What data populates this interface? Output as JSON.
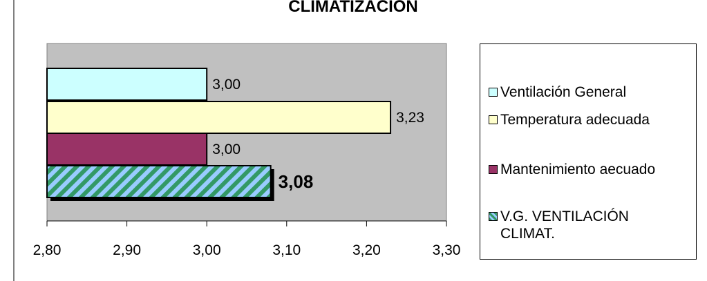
{
  "chart_data": {
    "type": "bar",
    "orientation": "horizontal",
    "title": "CLIMATIZACIÓN",
    "categories": [
      "Ventilación General",
      "Temperatura adecuada",
      "Mantenimiento aecuado",
      "V.G. VENTILACIÓN CLIMAT."
    ],
    "values": [
      3.0,
      3.23,
      3.0,
      3.08
    ],
    "value_labels": [
      "3,00",
      "3,23",
      "3,00",
      "3,08"
    ],
    "xlim": [
      2.8,
      3.3
    ],
    "xticks": [
      "2,80",
      "2,90",
      "3,00",
      "3,10",
      "3,20",
      "3,30"
    ],
    "grid": false,
    "legend_position": "right",
    "legend": [
      {
        "label": "Ventilación General",
        "color": "#ccffff"
      },
      {
        "label": "Temperatura adecuada",
        "color": "#ffffcc"
      },
      {
        "label": "Mantenimiento aecuado",
        "color": "#993366"
      },
      {
        "label": "V.G. VENTILACIÓN CLIMAT.",
        "color": "#339966",
        "stripe_color": "#99ccff",
        "pattern": "diagonal-stripes"
      }
    ],
    "colors": {
      "plot_background": "#c0c0c0"
    }
  }
}
